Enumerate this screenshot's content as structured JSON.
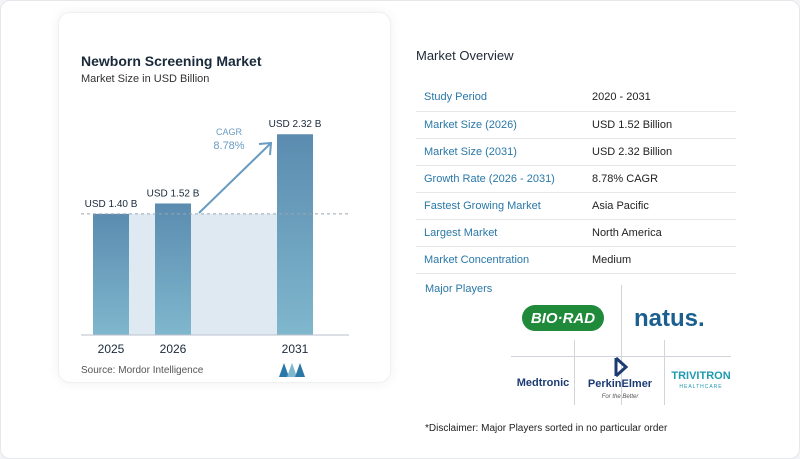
{
  "chart_card": {
    "title": "Newborn Screening Market",
    "subtitle": "Market Size in USD Billion",
    "source": "Source:  Mordor Intelligence"
  },
  "chart_data": {
    "type": "bar",
    "title": "Newborn Screening Market",
    "subtitle": "Market Size in USD Billion",
    "categories": [
      "2025",
      "2026",
      "2031"
    ],
    "values": [
      1.4,
      1.52,
      2.32
    ],
    "data_labels": [
      "USD 1.40 B",
      "USD 1.52 B",
      "USD 2.32 B"
    ],
    "annotation": {
      "label": "CAGR",
      "value": "8.78%"
    },
    "ylim": [
      0,
      2.45
    ],
    "colors": {
      "bar": "#5b8cb0",
      "bar_light": "#7fb7cd",
      "area": "#dfe9f2",
      "arrow": "#6a9bc0",
      "dash": "#9aa6b1"
    }
  },
  "overview": {
    "heading": "Market Overview",
    "rows": [
      {
        "key": "Study Period",
        "value": "2020 - 2031"
      },
      {
        "key": "Market Size (2026)",
        "value": "USD 1.52 Billion"
      },
      {
        "key": "Market Size (2031)",
        "value": "USD 2.32 Billion"
      },
      {
        "key": "Growth Rate (2026 - 2031)",
        "value": "8.78% CAGR"
      },
      {
        "key": "Fastest Growing Market",
        "value": "Asia Pacific"
      },
      {
        "key": "Largest Market",
        "value": "North America"
      },
      {
        "key": "Market Concentration",
        "value": "Medium"
      }
    ]
  },
  "players": {
    "label": "Major Players",
    "logos": {
      "bio_rad": "BIO·RAD",
      "natus": "natus.",
      "medtronic": "Medtronic",
      "perkinelmer": "PerkinElmer",
      "perkinelmer_tag": "For the Better",
      "trivitron": "TRIVITRON",
      "trivitron_sub": "HEALTHCARE"
    }
  },
  "disclaimer": "*Disclaimer: Major Players sorted in no particular order"
}
